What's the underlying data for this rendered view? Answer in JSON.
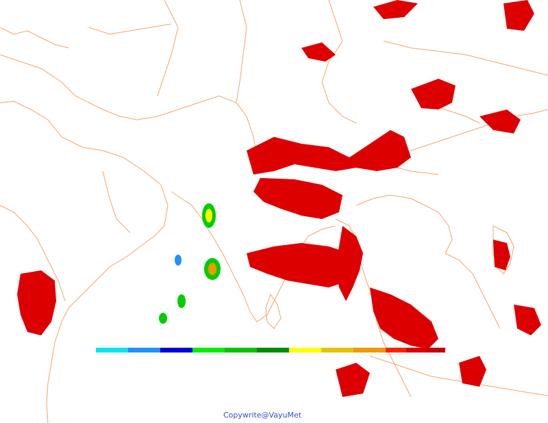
{
  "map": {
    "copyright": "Copywrite@VayuMet",
    "border_color": "#f2a468",
    "legend_colors": [
      "#00e5ee",
      "#1e90ff",
      "#0000dd",
      "#00ee00",
      "#00c400",
      "#008b00",
      "#ffff00",
      "#e8c200",
      "#ee9a00",
      "#ff2000",
      "#dd0000",
      "#c80000"
    ],
    "precip_colors": {
      "heavy": "#dd0000",
      "moderate": "#ee9a00",
      "light_yellow": "#ffff00",
      "light_green": "#00cc00",
      "very_light": "#1e90ff"
    }
  }
}
